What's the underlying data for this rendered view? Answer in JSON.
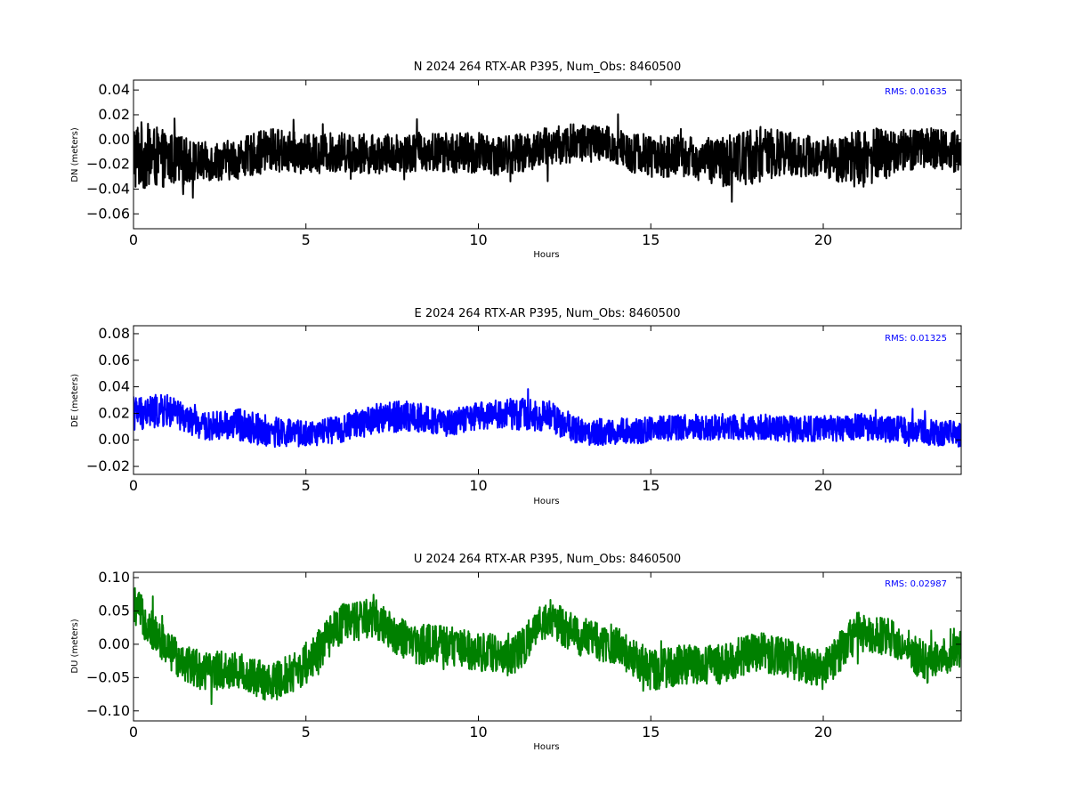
{
  "chart_data": [
    {
      "type": "line",
      "title": "N 2024 264 RTX-AR  P395, Num_Obs: 8460500",
      "xlabel": "Hours",
      "ylabel": "DN (meters)",
      "xlim": [
        0,
        24
      ],
      "ylim": [
        -0.072,
        0.048
      ],
      "x_ticks": [
        0,
        5,
        10,
        15,
        20
      ],
      "x_tick_labels": [
        "0",
        "5",
        "10",
        "15",
        "20"
      ],
      "y_ticks": [
        -0.06,
        -0.04,
        -0.02,
        0.0,
        0.02,
        0.04
      ],
      "y_tick_labels": [
        "−0.06",
        "−0.04",
        "−0.02",
        "0.00",
        "0.02",
        "0.04"
      ],
      "annotation": "RMS:  0.01635",
      "grid": false,
      "series": [
        {
          "color": "#000000",
          "x": [
            0,
            1,
            2,
            3,
            4,
            5,
            6,
            7,
            8,
            9,
            10,
            11,
            12,
            13,
            14,
            15,
            16,
            17,
            18,
            19,
            20,
            21,
            22,
            23,
            24
          ],
          "y": [
            -0.012,
            -0.016,
            -0.018,
            -0.016,
            -0.008,
            -0.012,
            -0.01,
            -0.012,
            -0.01,
            -0.01,
            -0.012,
            -0.012,
            -0.006,
            -0.002,
            -0.006,
            -0.014,
            -0.014,
            -0.018,
            -0.012,
            -0.012,
            -0.014,
            -0.016,
            -0.01,
            -0.006,
            -0.01
          ],
          "amplitude": [
            0.03,
            0.022,
            0.016,
            0.016,
            0.018,
            0.016,
            0.016,
            0.016,
            0.016,
            0.016,
            0.018,
            0.016,
            0.016,
            0.016,
            0.016,
            0.018,
            0.016,
            0.02,
            0.024,
            0.018,
            0.016,
            0.024,
            0.02,
            0.016,
            0.018
          ]
        }
      ]
    },
    {
      "type": "line",
      "title": "E 2024 264 RTX-AR  P395, Num_Obs: 8460500",
      "xlabel": "Hours",
      "ylabel": "DE (meters)",
      "xlim": [
        0,
        24
      ],
      "ylim": [
        -0.026,
        0.086
      ],
      "x_ticks": [
        0,
        5,
        10,
        15,
        20
      ],
      "x_tick_labels": [
        "0",
        "5",
        "10",
        "15",
        "20"
      ],
      "y_ticks": [
        -0.02,
        0.0,
        0.02,
        0.04,
        0.06,
        0.08
      ],
      "y_tick_labels": [
        "−0.02",
        "0.00",
        "0.02",
        "0.04",
        "0.06",
        "0.08"
      ],
      "annotation": "RMS:  0.01325",
      "grid": false,
      "series": [
        {
          "color": "#0000ff",
          "x": [
            0,
            1,
            2,
            3,
            4,
            5,
            6,
            7,
            8,
            9,
            10,
            11,
            12,
            13,
            14,
            15,
            16,
            17,
            18,
            19,
            20,
            21,
            22,
            23,
            24
          ],
          "y": [
            0.02,
            0.022,
            0.01,
            0.012,
            0.006,
            0.004,
            0.008,
            0.016,
            0.018,
            0.012,
            0.018,
            0.02,
            0.018,
            0.006,
            0.006,
            0.008,
            0.01,
            0.01,
            0.01,
            0.008,
            0.008,
            0.01,
            0.008,
            0.006,
            0.004
          ],
          "amplitude": [
            0.014,
            0.012,
            0.01,
            0.012,
            0.012,
            0.01,
            0.01,
            0.012,
            0.012,
            0.01,
            0.01,
            0.012,
            0.012,
            0.01,
            0.01,
            0.01,
            0.01,
            0.01,
            0.01,
            0.01,
            0.01,
            0.01,
            0.01,
            0.01,
            0.01
          ]
        }
      ]
    },
    {
      "type": "line",
      "title": "U 2024 264 RTX-AR  P395, Num_Obs: 8460500",
      "xlabel": "Hours",
      "ylabel": "DU (meters)",
      "xlim": [
        0,
        24
      ],
      "ylim": [
        -0.115,
        0.108
      ],
      "x_ticks": [
        0,
        5,
        10,
        15,
        20
      ],
      "x_tick_labels": [
        "0",
        "5",
        "10",
        "15",
        "20"
      ],
      "y_ticks": [
        -0.1,
        -0.05,
        0.0,
        0.05,
        0.1
      ],
      "y_tick_labels": [
        "−0.10",
        "−0.05",
        "0.00",
        "0.05",
        "0.10"
      ],
      "annotation": "RMS:  0.02987",
      "grid": false,
      "series": [
        {
          "color": "#008000",
          "x": [
            0,
            1,
            2,
            3,
            4,
            5,
            6,
            7,
            8,
            9,
            10,
            11,
            12,
            13,
            14,
            15,
            16,
            17,
            18,
            19,
            20,
            21,
            22,
            23,
            24
          ],
          "y": [
            0.06,
            -0.01,
            -0.04,
            -0.04,
            -0.06,
            -0.03,
            0.03,
            0.04,
            0.0,
            0.0,
            -0.01,
            -0.02,
            0.04,
            0.01,
            0.0,
            -0.04,
            -0.03,
            -0.03,
            -0.01,
            -0.02,
            -0.04,
            0.02,
            0.01,
            -0.03,
            -0.01
          ],
          "amplitude": [
            0.03,
            0.03,
            0.03,
            0.03,
            0.03,
            0.03,
            0.03,
            0.03,
            0.03,
            0.03,
            0.03,
            0.03,
            0.03,
            0.03,
            0.03,
            0.03,
            0.03,
            0.03,
            0.03,
            0.03,
            0.03,
            0.03,
            0.03,
            0.03,
            0.03
          ]
        }
      ]
    }
  ],
  "colors": {
    "annotation": "#0000ff",
    "axes": "#000000",
    "background": "#ffffff"
  }
}
